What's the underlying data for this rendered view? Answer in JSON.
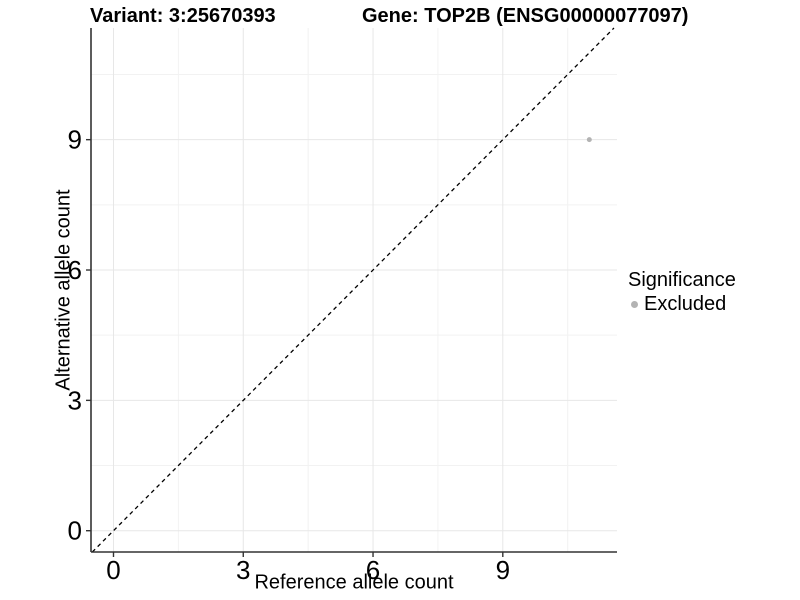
{
  "figure": {
    "title_left": "Variant: 3:25670393",
    "title_right": "Gene: TOP2B (ENSG00000077097)",
    "x_axis_title": "Reference allele count",
    "y_axis_title": "Alternative allele count",
    "legend": {
      "title": "Significance",
      "items": [
        {
          "label": "Excluded",
          "color": "#b3b3b3"
        }
      ]
    }
  },
  "chart_data": {
    "type": "scatter",
    "title": "Variant: 3:25670393   Gene: TOP2B (ENSG00000077097)",
    "xlabel": "Reference allele count",
    "ylabel": "Alternative allele count",
    "xlim": [
      -0.52,
      11.64
    ],
    "ylim": [
      -0.49,
      11.57
    ],
    "x_ticks": [
      0,
      3,
      6,
      9
    ],
    "y_ticks": [
      0,
      3,
      6,
      9
    ],
    "x_minor_ticks": [
      1.5,
      4.5,
      7.5,
      10.5
    ],
    "y_minor_ticks": [
      1.5,
      4.5,
      7.5,
      10.5
    ],
    "grid": true,
    "legend_position": "right",
    "series": [
      {
        "name": "Excluded",
        "color": "#b3b3b3",
        "points": [
          {
            "x": 11,
            "y": 9
          }
        ]
      }
    ],
    "reference_line": {
      "slope": 1,
      "intercept": 0,
      "style": "dashed",
      "color": "#000000"
    },
    "colors": {
      "grid_major": "#e7e7e7",
      "grid_minor": "#f2f2f2",
      "axis_line": "#333333",
      "tick_label": "#000000"
    }
  }
}
